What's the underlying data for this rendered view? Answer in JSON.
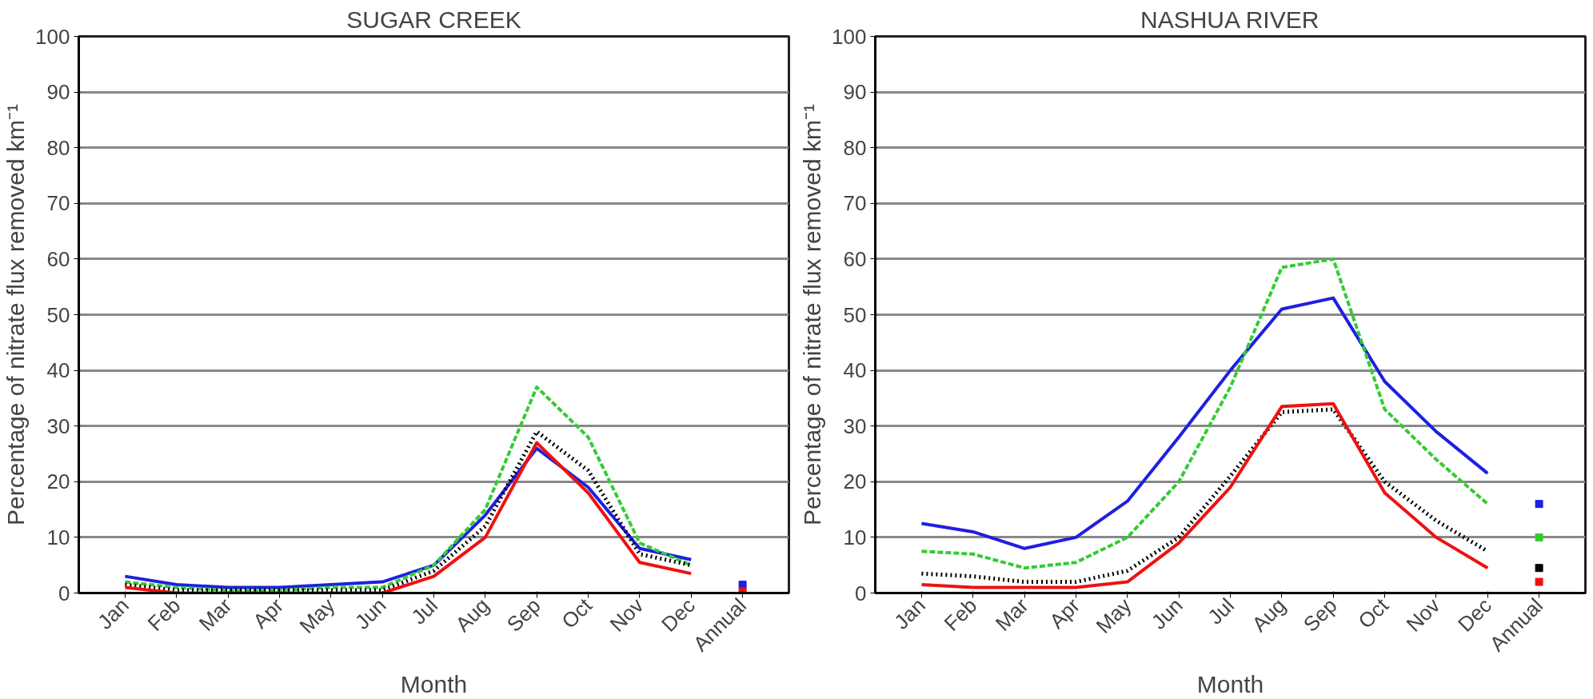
{
  "chart_data": [
    {
      "type": "line",
      "title": "SUGAR CREEK",
      "xlabel": "Month",
      "ylabel": "Percentage of nitrate flux removed km⁻¹",
      "categories": [
        "Jan",
        "Feb",
        "Mar",
        "Apr",
        "May",
        "Jun",
        "Jul",
        "Aug",
        "Sep",
        "Oct",
        "Nov",
        "Dec",
        "Annual"
      ],
      "ylim": [
        0,
        100
      ],
      "yticks": [
        0,
        10,
        20,
        30,
        40,
        50,
        60,
        70,
        80,
        90,
        100
      ],
      "grid": "y",
      "series": [
        {
          "color": "#1f1fe0",
          "line_style": "solid",
          "values": [
            3,
            1.5,
            1,
            1,
            1.5,
            2,
            5,
            14,
            26,
            19,
            8,
            6,
            null
          ]
        },
        {
          "color": "#33cc33",
          "line_style": "dashed",
          "values": [
            2,
            1,
            0.5,
            0.5,
            1,
            1,
            5,
            15,
            37,
            28,
            9,
            5,
            null
          ]
        },
        {
          "color": "#000000",
          "line_style": "dotted",
          "values": [
            1.5,
            0.5,
            0.5,
            0.5,
            0.5,
            0.5,
            4,
            12,
            29,
            22,
            7,
            5,
            null
          ]
        },
        {
          "color": "#ee1111",
          "line_style": "solid",
          "values": [
            1,
            0,
            0,
            0,
            0,
            0,
            3,
            10,
            27,
            18,
            5.5,
            3.5,
            null
          ]
        },
        {
          "type": "scatter",
          "marker": "square",
          "color": "#1f1fe0",
          "x": [
            "Annual"
          ],
          "values": [
            1.5
          ]
        },
        {
          "type": "scatter",
          "marker": "square",
          "color": "#33cc33",
          "x": [
            "Annual"
          ],
          "values": [
            null
          ]
        },
        {
          "type": "scatter",
          "marker": "square",
          "color": "#000000",
          "x": [
            "Annual"
          ],
          "values": [
            null
          ]
        },
        {
          "type": "scatter",
          "marker": "square",
          "color": "#ee1111",
          "x": [
            "Annual"
          ],
          "values": [
            0.3
          ]
        }
      ]
    },
    {
      "type": "line",
      "title": "NASHUA RIVER",
      "xlabel": "Month",
      "ylabel": "Percentage of nitrate flux removed km⁻¹",
      "categories": [
        "Jan",
        "Feb",
        "Mar",
        "Apr",
        "May",
        "Jun",
        "Jul",
        "Aug",
        "Sep",
        "Oct",
        "Nov",
        "Dec",
        "Annual"
      ],
      "ylim": [
        0,
        100
      ],
      "yticks": [
        0,
        10,
        20,
        30,
        40,
        50,
        60,
        70,
        80,
        90,
        100
      ],
      "grid": "y",
      "series": [
        {
          "color": "#1f1fe0",
          "line_style": "solid",
          "values": [
            12.5,
            11,
            8,
            10,
            16.5,
            28,
            40,
            51,
            53,
            38,
            29,
            21.5,
            null
          ]
        },
        {
          "color": "#33cc33",
          "line_style": "dashed",
          "values": [
            7.5,
            7,
            4.5,
            5.5,
            10,
            20,
            37,
            58.5,
            60,
            33,
            24,
            16,
            null
          ]
        },
        {
          "color": "#000000",
          "line_style": "dotted",
          "values": [
            3.5,
            3,
            2,
            2,
            4,
            10,
            21,
            32.5,
            33,
            20,
            13,
            7.5,
            null
          ]
        },
        {
          "color": "#ee1111",
          "line_style": "solid",
          "values": [
            1.5,
            1,
            1,
            1,
            2,
            9,
            19,
            33.5,
            34,
            18,
            10,
            4.5,
            null
          ]
        },
        {
          "type": "scatter",
          "marker": "square",
          "color": "#1f1fe0",
          "x": [
            "Annual"
          ],
          "values": [
            16
          ]
        },
        {
          "type": "scatter",
          "marker": "square",
          "color": "#33cc33",
          "x": [
            "Annual"
          ],
          "values": [
            10
          ]
        },
        {
          "type": "scatter",
          "marker": "square",
          "color": "#000000",
          "x": [
            "Annual"
          ],
          "values": [
            4.5
          ]
        },
        {
          "type": "scatter",
          "marker": "square",
          "color": "#ee1111",
          "x": [
            "Annual"
          ],
          "values": [
            2
          ]
        }
      ]
    }
  ]
}
